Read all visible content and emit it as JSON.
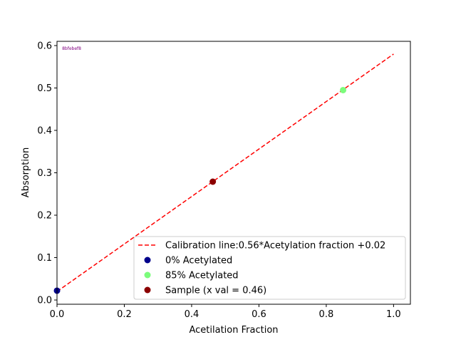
{
  "chart_data": {
    "type": "scatter",
    "title": "",
    "xlabel": "Acetilation Fraction",
    "ylabel": "Absorption",
    "xlim": [
      0.0,
      1.05
    ],
    "ylim": [
      -0.01,
      0.61
    ],
    "xticks": [
      0.0,
      0.2,
      0.4,
      0.6,
      0.8,
      1.0
    ],
    "xtick_labels": [
      "0.0",
      "0.2",
      "0.4",
      "0.6",
      "0.8",
      "1.0"
    ],
    "yticks": [
      0.0,
      0.1,
      0.2,
      0.3,
      0.4,
      0.5,
      0.6
    ],
    "ytick_labels": [
      "0.0",
      "0.1",
      "0.2",
      "0.3",
      "0.4",
      "0.5",
      "0.6"
    ],
    "grid": false,
    "legend_position": "lower-right",
    "annotation": {
      "text": "8bfebef8",
      "color": "#800080",
      "x": 0.015,
      "y": 0.59
    },
    "calibration_line": {
      "name": "Calibration line:0.56*Acetylation fraction +0.02",
      "slope": 0.56,
      "intercept": 0.02,
      "x": [
        0.0,
        1.0
      ],
      "color": "#ff0000",
      "style": "dashed"
    },
    "series": [
      {
        "name": "0% Acetylated",
        "color": "#00008b",
        "points": [
          {
            "x": 0.0,
            "y": 0.022
          }
        ]
      },
      {
        "name": "85% Acetylated",
        "color": "#7cfc7c",
        "points": [
          {
            "x": 0.85,
            "y": 0.495
          }
        ]
      },
      {
        "name": "Sample (x val = 0.46)",
        "color": "#8b0000",
        "points": [
          {
            "x": 0.4629,
            "y": 0.279
          }
        ]
      }
    ]
  }
}
